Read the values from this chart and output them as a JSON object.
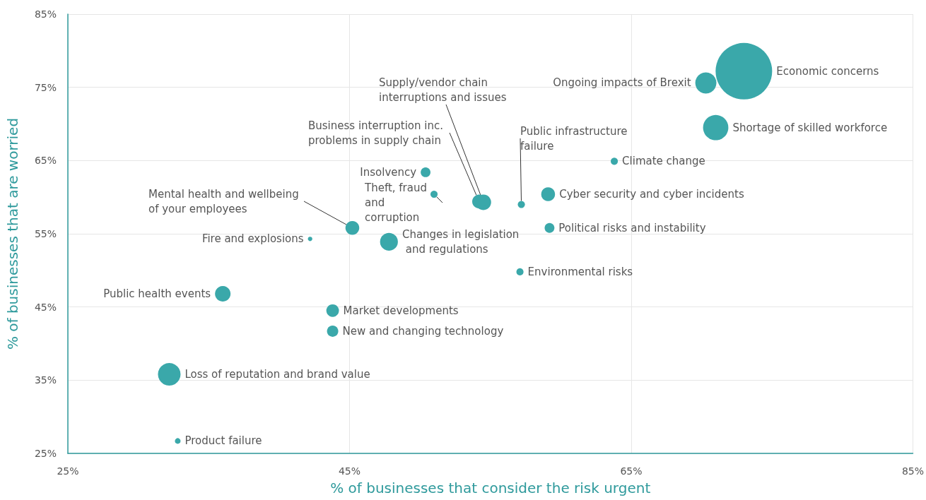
{
  "chart_data": {
    "type": "bubble",
    "xlabel": "% of businesses that consider the risk urgent",
    "ylabel": "% of businesses that are worried",
    "xlim": [
      25,
      85
    ],
    "ylim": [
      25,
      85
    ],
    "xticks": [
      {
        "value": 25,
        "label": "25%"
      },
      {
        "value": 45,
        "label": "45%"
      },
      {
        "value": 65,
        "label": "65%"
      },
      {
        "value": 85,
        "label": "85%"
      }
    ],
    "yticks": [
      {
        "value": 25,
        "label": "25%"
      },
      {
        "value": 35,
        "label": "35%"
      },
      {
        "value": 45,
        "label": "45%"
      },
      {
        "value": 55,
        "label": "55%"
      },
      {
        "value": 65,
        "label": "65%"
      },
      {
        "value": 75,
        "label": "75%"
      },
      {
        "value": 85,
        "label": "85%"
      }
    ],
    "grid": true,
    "series": [
      {
        "name": "Economic concerns",
        "color": "#3aa8aa",
        "x": [
          73.0
        ],
        "values": [
          77.2
        ],
        "sizes": [
          1
        ]
      },
      {
        "name": "Ongoing impacts of Brexit",
        "color": "#3aa8aa",
        "x": [
          70.3
        ],
        "values": [
          75.6
        ],
        "sizes": [
          0.14
        ]
      },
      {
        "name": "Shortage of skilled workforce",
        "color": "#3aa8aa",
        "x": [
          71.0
        ],
        "values": [
          69.5
        ],
        "sizes": [
          0.2
        ]
      },
      {
        "name": "Climate change",
        "color": "#3aa8aa",
        "x": [
          63.8
        ],
        "values": [
          64.9
        ],
        "sizes": [
          0.016
        ]
      },
      {
        "name": "Cyber security and cyber incidents",
        "color": "#3aa8aa",
        "x": [
          59.1
        ],
        "values": [
          60.4
        ],
        "sizes": [
          0.06
        ]
      },
      {
        "name": "Public infrastructure failure",
        "color": "#3aa8aa",
        "x": [
          57.2
        ],
        "values": [
          59.0
        ],
        "sizes": [
          0.016
        ]
      },
      {
        "name": "Political risks and instability",
        "color": "#3aa8aa",
        "x": [
          59.2
        ],
        "values": [
          55.8
        ],
        "sizes": [
          0.03
        ]
      },
      {
        "name": "Environmental risks",
        "color": "#3aa8aa",
        "x": [
          57.1
        ],
        "values": [
          49.8
        ],
        "sizes": [
          0.016
        ]
      },
      {
        "name": "Supply/vendor chain interruptions and issues",
        "color": "#3aa8aa",
        "x": [
          54.5
        ],
        "values": [
          59.3
        ],
        "sizes": [
          0.076
        ]
      },
      {
        "name": "Business interruption inc. problems in supply chain",
        "color": "#3aa8aa",
        "x": [
          54.2
        ],
        "values": [
          59.4
        ],
        "sizes": [
          0.06
        ]
      },
      {
        "name": "Insolvency",
        "color": "#3aa8aa",
        "x": [
          50.4
        ],
        "values": [
          63.4
        ],
        "sizes": [
          0.03
        ]
      },
      {
        "name": "Theft, fraud and corruption",
        "color": "#3aa8aa",
        "x": [
          51.0
        ],
        "values": [
          60.4
        ],
        "sizes": [
          0.016
        ]
      },
      {
        "name": "Mental health and wellbeing of your employees",
        "color": "#3aa8aa",
        "x": [
          45.2
        ],
        "values": [
          55.8
        ],
        "sizes": [
          0.06
        ]
      },
      {
        "name": "Fire and explosions",
        "color": "#3aa8aa",
        "x": [
          42.2
        ],
        "values": [
          54.3
        ],
        "sizes": [
          0.006
        ]
      },
      {
        "name": "Changes in legislation and regulations",
        "color": "#3aa8aa",
        "x": [
          47.8
        ],
        "values": [
          53.9
        ],
        "sizes": [
          0.1
        ]
      },
      {
        "name": "Public health events",
        "color": "#3aa8aa",
        "x": [
          36.0
        ],
        "values": [
          46.8
        ],
        "sizes": [
          0.076
        ]
      },
      {
        "name": "Market developments",
        "color": "#3aa8aa",
        "x": [
          43.8
        ],
        "values": [
          44.5
        ],
        "sizes": [
          0.05
        ]
      },
      {
        "name": "New and changing technology",
        "color": "#3aa8aa",
        "x": [
          43.8
        ],
        "values": [
          41.7
        ],
        "sizes": [
          0.04
        ]
      },
      {
        "name": "Loss of reputation and brand value",
        "color": "#3aa8aa",
        "x": [
          32.2
        ],
        "values": [
          35.8
        ],
        "sizes": [
          0.16
        ]
      },
      {
        "name": "Product failure",
        "color": "#3aa8aa",
        "x": [
          32.8
        ],
        "values": [
          26.7
        ],
        "sizes": [
          0.01
        ]
      }
    ]
  }
}
